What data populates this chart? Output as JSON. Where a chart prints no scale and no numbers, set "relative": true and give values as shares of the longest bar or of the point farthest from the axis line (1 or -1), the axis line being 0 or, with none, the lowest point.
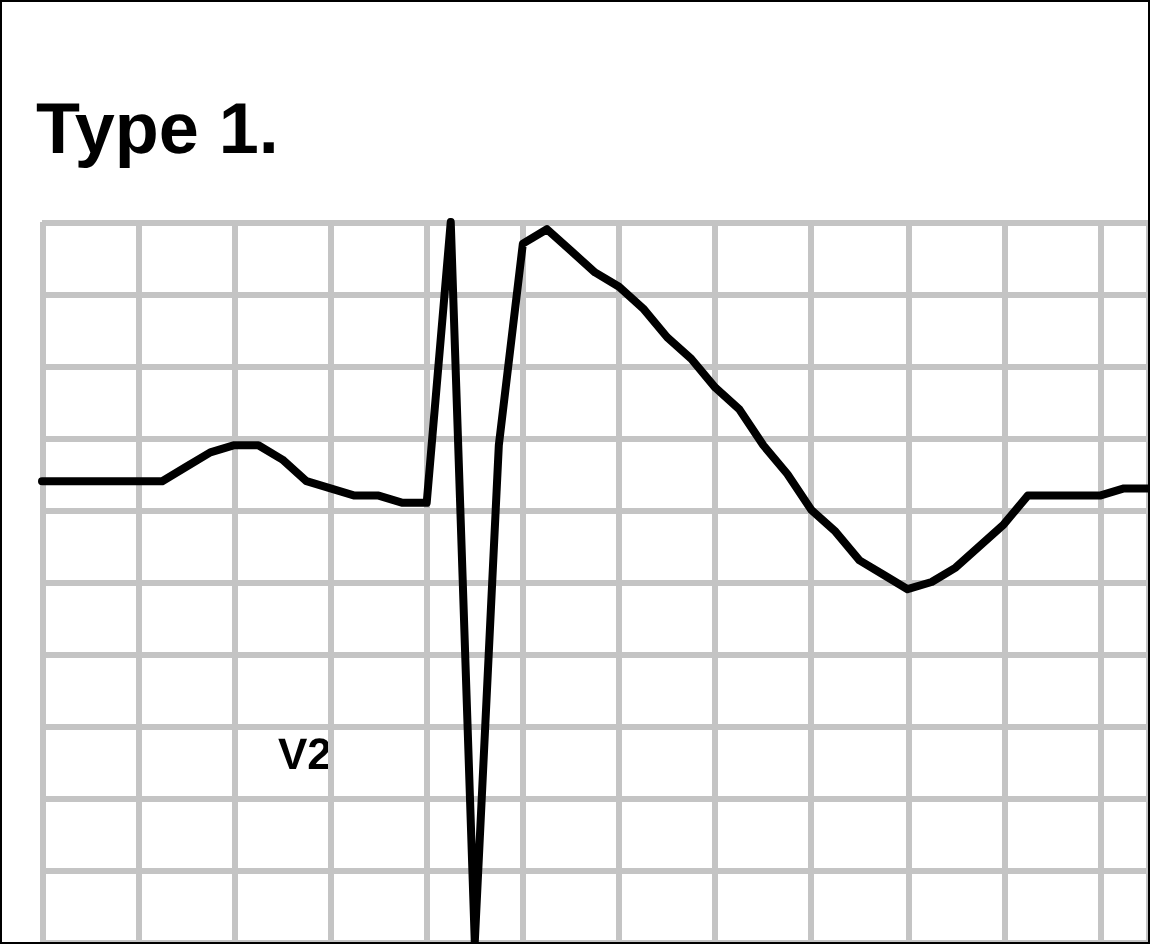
{
  "chart_data": {
    "type": "line",
    "title": "Type 1.",
    "relative": true,
    "grid": true,
    "marker": "none",
    "line_style": "solid",
    "categories": [
      null,
      null,
      null,
      null,
      null,
      null,
      null,
      null,
      null,
      null,
      null,
      null,
      null,
      null,
      null,
      null,
      null,
      null,
      null,
      null,
      null,
      null,
      null,
      null,
      null,
      null,
      null,
      null,
      null,
      null,
      null,
      null,
      null,
      null,
      null,
      null,
      null,
      null,
      null,
      null,
      null,
      null,
      null,
      null,
      null,
      null,
      null
    ],
    "series": [
      {
        "color": "#000000",
        "values": [
          0.64,
          0.64,
          0.64,
          0.64,
          0.64,
          0.64,
          0.66,
          0.68,
          0.69,
          0.69,
          0.67,
          0.64,
          0.63,
          0.62,
          0.62,
          0.61,
          0.61,
          1,
          0,
          0.69,
          0.97,
          0.99,
          0.96,
          0.93,
          0.91,
          0.88,
          0.84,
          0.81,
          0.77,
          0.74,
          0.69,
          0.65,
          0.6,
          0.57,
          0.53,
          0.51,
          0.49,
          0.5,
          0.52,
          0.55,
          0.58,
          0.62,
          0.62,
          0.62,
          0.62,
          0.63,
          0.63
        ]
      }
    ],
    "annotations": [
      "V2"
    ]
  }
}
